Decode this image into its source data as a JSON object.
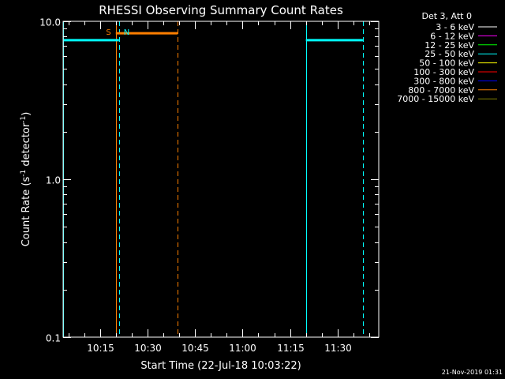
{
  "chart_data": {
    "type": "line",
    "title": "RHESSI Observing Summary Count Rates",
    "xlabel": "Start Time (22-Jul-18 10:03:22)",
    "ylabel_parts": [
      "Count Rate (s",
      "-1",
      " detector",
      "-1",
      ")"
    ],
    "yscale": "log",
    "ylim": [
      0.1,
      10.0
    ],
    "yticks": [
      {
        "value": 0.1,
        "label": "0.1"
      },
      {
        "value": 1.0,
        "label": "1.0"
      },
      {
        "value": 10.0,
        "label": "10.0"
      }
    ],
    "xlim": [
      "10:03:22",
      "11:43:00"
    ],
    "xticks": [
      {
        "time": "10:15",
        "label": "10:15"
      },
      {
        "time": "10:30",
        "label": "10:30"
      },
      {
        "time": "10:45",
        "label": "10:45"
      },
      {
        "time": "11:00",
        "label": "11:00"
      },
      {
        "time": "11:15",
        "label": "11:15"
      },
      {
        "time": "11:30",
        "label": "11:30"
      }
    ],
    "legend_header": "Det 3, Att 0",
    "legend_location": "top-right",
    "legend": [
      {
        "label": "3 - 6 keV",
        "color": "#ffffff"
      },
      {
        "label": "6 - 12 keV",
        "color": "#ff00ff"
      },
      {
        "label": "12 - 25 keV",
        "color": "#00ff00"
      },
      {
        "label": "25 - 50 keV",
        "color": "#00ffff"
      },
      {
        "label": "50 - 100 keV",
        "color": "#ffff00"
      },
      {
        "label": "100 - 300 keV",
        "color": "#ff0000"
      },
      {
        "label": "300 - 800 keV",
        "color": "#0000ff"
      },
      {
        "label": "800 - 7000 keV",
        "color": "#ff7f00"
      },
      {
        "label": "7000 - 15000 keV",
        "color": "#808000"
      }
    ],
    "segments": [
      {
        "color": "#00ffff",
        "start": "10:03:22",
        "end": "10:21:00",
        "value": 7.6
      },
      {
        "color": "#ff7f00",
        "start": "10:20:00",
        "end": "10:39:30",
        "value": 8.4
      },
      {
        "color": "#00ffff",
        "start": "11:20:00",
        "end": "11:38:00",
        "value": 7.6
      }
    ],
    "vlines": [
      {
        "time": "10:03:22",
        "color": "#00ffff",
        "style": "solid"
      },
      {
        "time": "10:20:00",
        "color": "#ff7f00",
        "style": "solid"
      },
      {
        "time": "10:21:00",
        "color": "#00ffff",
        "style": "dashed"
      },
      {
        "time": "10:39:30",
        "color": "#ff7f00",
        "style": "dashed"
      },
      {
        "time": "11:20:00",
        "color": "#00ffff",
        "style": "solid"
      },
      {
        "time": "11:38:00",
        "color": "#00ffff",
        "style": "dashed"
      }
    ],
    "markers": [
      {
        "label": "S",
        "color": "#ff7f00",
        "time": "10:20:00",
        "side": "left"
      },
      {
        "label": "N",
        "color": "#00ffff",
        "time": "10:21:00",
        "side": "right"
      }
    ]
  },
  "footer": {
    "timestamp": "21-Nov-2019 01:31"
  },
  "colors": {
    "background": "#000000",
    "axes": "#ffffff"
  }
}
